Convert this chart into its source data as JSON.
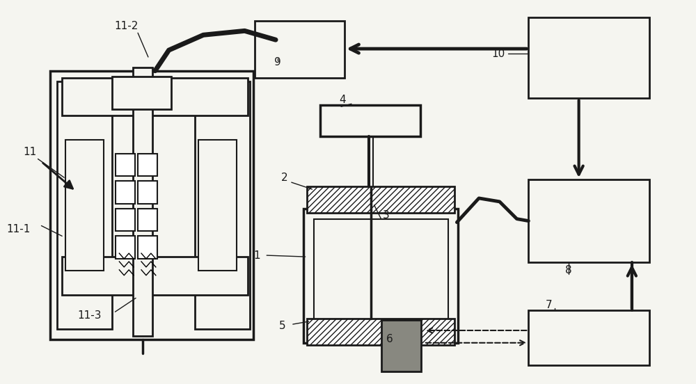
{
  "bg_color": "#f5f5f0",
  "lc": "#1a1a1a",
  "fig_w": 10.0,
  "fig_h": 5.52,
  "dpi": 100,
  "labels": {
    "11": [
      38,
      255,
      "11"
    ],
    "11-1": [
      18,
      330,
      "11-1"
    ],
    "11-2": [
      168,
      42,
      "11-2"
    ],
    "11-3": [
      118,
      448,
      "11-3"
    ],
    "1": [
      368,
      368,
      "1"
    ],
    "2": [
      406,
      290,
      "2"
    ],
    "3": [
      540,
      315,
      "3"
    ],
    "4": [
      490,
      148,
      "4"
    ],
    "5": [
      400,
      468,
      "5"
    ],
    "6": [
      556,
      480,
      "6"
    ],
    "7": [
      780,
      448,
      "7"
    ],
    "8": [
      808,
      325,
      "8"
    ],
    "9": [
      390,
      88,
      "9"
    ],
    "10": [
      700,
      80,
      "10"
    ]
  }
}
